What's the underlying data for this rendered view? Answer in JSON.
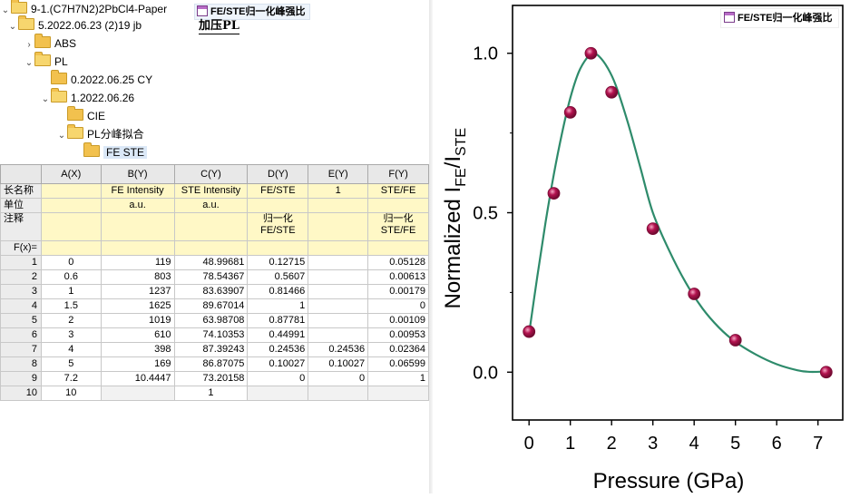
{
  "tree": {
    "items": [
      {
        "label": "9-1.(C7H7N2)2PbCl4-Paper",
        "open": true
      },
      {
        "label": "5.2022.06.23 (2)19 jb",
        "open": true
      },
      {
        "label": "ABS",
        "open": false
      },
      {
        "label": "PL",
        "open": true
      },
      {
        "label": "0.2022.06.25 CY",
        "open": false
      },
      {
        "label": "1.2022.06.26",
        "open": true
      },
      {
        "label": "CIE",
        "open": false
      },
      {
        "label": "PL分峰拟合",
        "open": true
      },
      {
        "label": "FE STE",
        "open": false
      }
    ]
  },
  "windows": {
    "workbook_tab": "FE/STE归一化峰强比",
    "graph_tab": "加压PL"
  },
  "sheet": {
    "columns": [
      "A(X)",
      "B(Y)",
      "C(Y)",
      "D(Y)",
      "E(Y)",
      "F(Y)"
    ],
    "meta": [
      {
        "label": "长名称",
        "cells": [
          "",
          "FE  Intensity",
          "STE Intensity",
          "FE/STE",
          "1",
          "STE/FE"
        ]
      },
      {
        "label": "单位",
        "cells": [
          "",
          "a.u.",
          "a.u.",
          "",
          "",
          ""
        ]
      },
      {
        "label": "注释",
        "cells": [
          "",
          "",
          "",
          "归一化FE/STE",
          "",
          "归一化STE/FE"
        ]
      },
      {
        "label": "F(x)=",
        "cells": [
          "",
          "",
          "",
          "",
          "",
          ""
        ]
      }
    ],
    "rows": [
      {
        "n": "1",
        "cells": [
          "0",
          "119",
          "48.99681",
          "0.12715",
          "",
          "0.05128"
        ]
      },
      {
        "n": "2",
        "cells": [
          "0.6",
          "803",
          "78.54367",
          "0.5607",
          "",
          "0.00613"
        ]
      },
      {
        "n": "3",
        "cells": [
          "1",
          "1237",
          "83.63907",
          "0.81466",
          "",
          "0.00179"
        ]
      },
      {
        "n": "4",
        "cells": [
          "1.5",
          "1625",
          "89.67014",
          "1",
          "",
          "0"
        ]
      },
      {
        "n": "5",
        "cells": [
          "2",
          "1019",
          "63.98708",
          "0.87781",
          "",
          "0.00109"
        ]
      },
      {
        "n": "6",
        "cells": [
          "3",
          "610",
          "74.10353",
          "0.44991",
          "",
          "0.00953"
        ]
      },
      {
        "n": "7",
        "cells": [
          "4",
          "398",
          "87.39243",
          "0.24536",
          "0.24536",
          "0.02364"
        ]
      },
      {
        "n": "8",
        "cells": [
          "5",
          "169",
          "86.87075",
          "0.10027",
          "0.10027",
          "0.06599"
        ]
      },
      {
        "n": "9",
        "cells": [
          "7.2",
          "10.4447",
          "73.20158",
          "0",
          "0",
          "1"
        ]
      },
      {
        "n": "10",
        "cells": [
          "10",
          "",
          "1",
          "",
          "",
          ""
        ]
      }
    ]
  },
  "chart_data": {
    "type": "scatter",
    "legend": "FE/STE归一化峰强比",
    "legend_position": "top-right",
    "xlabel": "Pressure (GPa)",
    "ylabel_main": "Normalized I",
    "ylabel_sub1": "FE",
    "ylabel_mid": "/I",
    "ylabel_sub2": "STE",
    "xlim": [
      -0.4,
      7.6
    ],
    "ylim": [
      -0.15,
      1.15
    ],
    "xticks": [
      "0",
      "1",
      "2",
      "3",
      "4",
      "5",
      "6",
      "7"
    ],
    "yticks": [
      "0.0",
      "0.5",
      "1.0"
    ],
    "grid": false,
    "series": [
      {
        "x": [
          0,
          0.6,
          1,
          1.5,
          2,
          3,
          4,
          5,
          7.2
        ],
        "y": [
          0.12715,
          0.5607,
          0.81466,
          1,
          0.87781,
          0.44991,
          0.24536,
          0.10027,
          0
        ]
      }
    ],
    "fit_curve": {
      "x": [
        0,
        0.2,
        0.4,
        0.6,
        0.8,
        1.0,
        1.2,
        1.4,
        1.55,
        1.7,
        1.9,
        2.1,
        2.4,
        2.7,
        3.0,
        3.4,
        3.8,
        4.2,
        4.6,
        5.0,
        5.5,
        6.0,
        6.5,
        6.8,
        7.2
      ],
      "y": [
        0.12,
        0.3,
        0.47,
        0.62,
        0.75,
        0.86,
        0.94,
        0.985,
        1.0,
        0.99,
        0.955,
        0.9,
        0.78,
        0.64,
        0.5,
        0.38,
        0.28,
        0.2,
        0.14,
        0.095,
        0.055,
        0.025,
        0.006,
        0.001,
        0.002
      ]
    },
    "colors": {
      "line": "#2e8b6b",
      "marker": "#b3124f",
      "axis": "#000000"
    }
  }
}
